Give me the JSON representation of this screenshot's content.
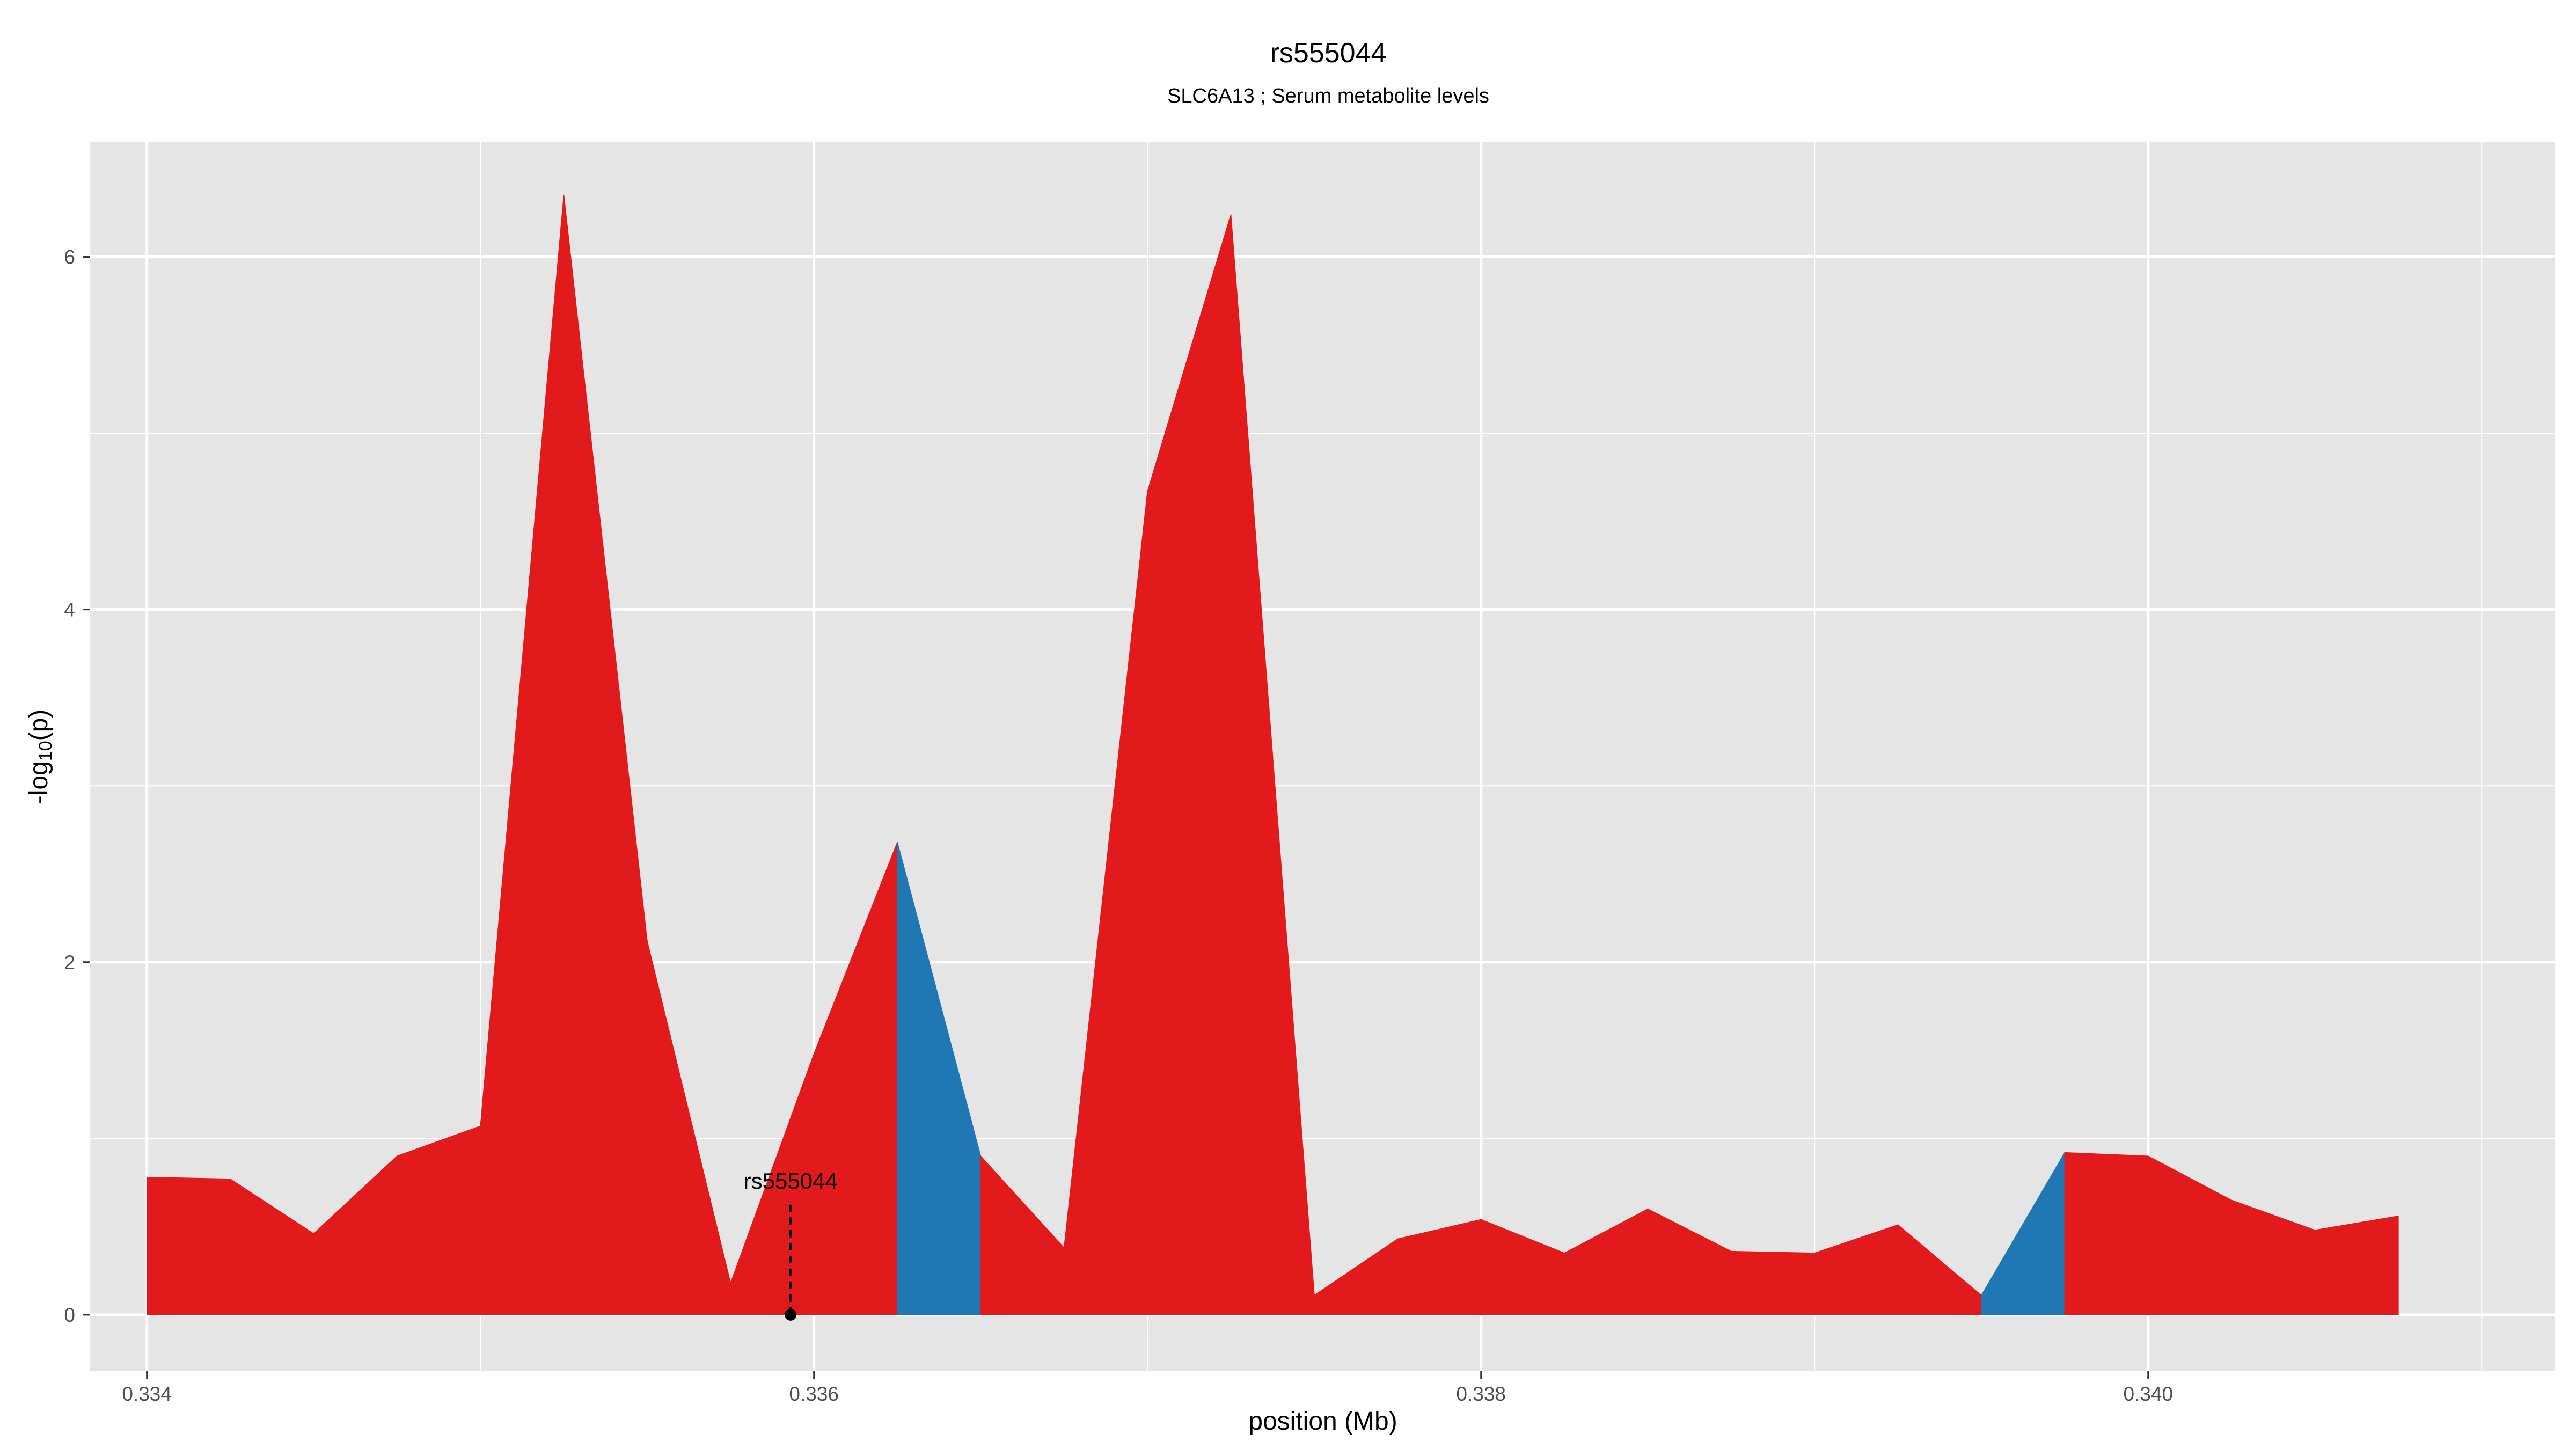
{
  "chart_data": {
    "type": "area",
    "title": "rs555044",
    "subtitle": "SLC6A13 ; Serum metabolite levels",
    "xlabel": "position (Mb)",
    "ylabel_main": "-log",
    "ylabel_sub": "10",
    "ylabel_tail": "(p)",
    "xlim": [
      0.33383,
      0.34122
    ],
    "ylim": [
      -0.32,
      6.65
    ],
    "x_ticks": [
      0.334,
      0.336,
      0.338,
      0.34
    ],
    "x_tick_labels": [
      "0.334",
      "0.336",
      "0.338",
      "0.340"
    ],
    "y_ticks": [
      0,
      2,
      4,
      6
    ],
    "y_tick_labels": [
      "0",
      "2",
      "4",
      "6"
    ],
    "grid": true,
    "colors": {
      "panel": "#e5e5e5",
      "grid": "#ffffff",
      "positive": "#e31a1c",
      "negative": "#1f78b4",
      "annotation": "#000000"
    },
    "series": [
      {
        "x": [
          0.334,
          0.33425,
          0.3345,
          0.33475,
          0.335,
          0.33525,
          0.3355,
          0.33575,
          0.336,
          0.33625,
          0.3365,
          0.33675,
          0.337,
          0.33725,
          0.3375,
          0.33775,
          0.338,
          0.33825,
          0.3385,
          0.33875,
          0.339,
          0.33925,
          0.3395,
          0.33975,
          0.34,
          0.34025,
          0.3405,
          0.34075
        ],
        "y": [
          0.78,
          0.77,
          0.46,
          0.9,
          1.07,
          6.35,
          2.12,
          0.18,
          1.48,
          2.68,
          0.9,
          0.38,
          4.67,
          6.24,
          0.11,
          0.43,
          0.54,
          0.35,
          0.6,
          0.36,
          0.35,
          0.51,
          0.11,
          0.92,
          0.9,
          0.65,
          0.48,
          0.56
        ],
        "direction": [
          "pos",
          "pos",
          "pos",
          "pos",
          "pos",
          "pos",
          "pos",
          "pos",
          "pos",
          "pos",
          "pos",
          "pos",
          "pos",
          "pos",
          "pos",
          "pos",
          "pos",
          "pos",
          "pos",
          "pos",
          "pos",
          "pos",
          "pos",
          "pos",
          "pos",
          "pos",
          "pos",
          "pos"
        ],
        "negative_segments": [
          [
            0.33625,
            0.3365
          ],
          [
            0.3395,
            0.33975
          ]
        ]
      }
    ],
    "annotation": {
      "label": "rs555044",
      "x": 0.33593,
      "y": 0
    }
  }
}
